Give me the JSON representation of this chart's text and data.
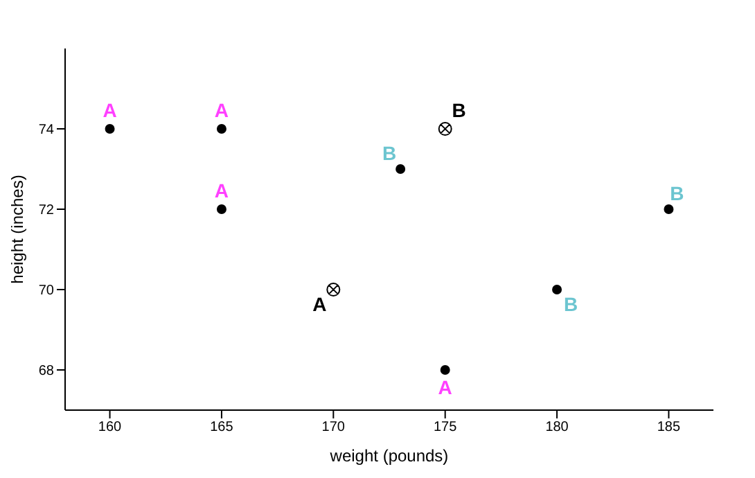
{
  "chart_data": {
    "type": "scatter",
    "xlabel": "weight (pounds)",
    "ylabel": "height (inches)",
    "xlim": [
      158,
      187
    ],
    "ylim": [
      67,
      76
    ],
    "xticks": [
      160,
      165,
      170,
      175,
      180,
      185
    ],
    "yticks": [
      68,
      70,
      72,
      74
    ],
    "series": [
      {
        "color": "#ff40ff",
        "colors": [
          "#000000",
          "#000000",
          "#000000",
          "#000000"
        ],
        "marker": "circle",
        "x": [
          160,
          165,
          165,
          175
        ],
        "values": [
          74,
          74,
          72,
          68
        ],
        "value_labels": [
          "A",
          "A",
          "A",
          "A"
        ]
      },
      {
        "color": "#6cc5d0",
        "colors": [
          "#000000",
          "#000000",
          "#000000"
        ],
        "marker": "circle",
        "x": [
          173,
          185,
          180
        ],
        "values": [
          73,
          72,
          70
        ],
        "value_labels": [
          "B",
          "B",
          "B"
        ]
      },
      {
        "color": "#000000",
        "marker": "cross",
        "x": [
          170,
          175
        ],
        "values": [
          70,
          74
        ],
        "value_labels": [
          "A",
          "B"
        ]
      }
    ]
  }
}
